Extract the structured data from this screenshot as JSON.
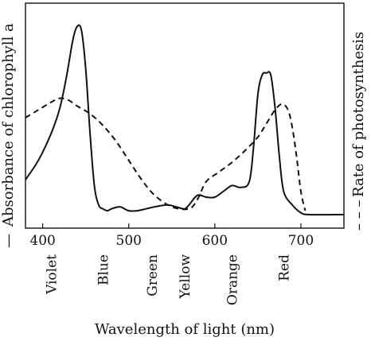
{
  "chart_data": {
    "type": "line",
    "xlabel": "Wavelength of light (nm)",
    "ylabel_left": "Absorbance of chlorophyll a",
    "ylabel_right": "Rate of photosynthesis",
    "left_marker": "—",
    "right_marker": "– – –",
    "xlim": [
      380,
      750
    ],
    "ylim": [
      0,
      1
    ],
    "xticks": [
      {
        "value": 400,
        "label": "400"
      },
      {
        "value": 500,
        "label": "500"
      },
      {
        "value": 600,
        "label": "600"
      },
      {
        "value": 700,
        "label": "700"
      }
    ],
    "color_labels": [
      {
        "text": "Violet",
        "x": 410
      },
      {
        "text": "Blue",
        "x": 470
      },
      {
        "text": "Green",
        "x": 527
      },
      {
        "text": "Yellow",
        "x": 565
      },
      {
        "text": "Orange",
        "x": 620
      },
      {
        "text": "Red",
        "x": 680
      }
    ],
    "series": [
      {
        "name": "Absorbance of chlorophyll a",
        "style": "solid",
        "x": [
          380,
          395,
          410,
          420,
          428,
          435,
          440,
          445,
          450,
          455,
          460,
          465,
          470,
          475,
          480,
          490,
          500,
          510,
          520,
          530,
          545,
          555,
          565,
          570,
          580,
          590,
          600,
          610,
          620,
          630,
          640,
          645,
          650,
          655,
          660,
          665,
          670,
          675,
          680,
          690,
          700,
          710,
          750
        ],
        "y": [
          0.18,
          0.28,
          0.42,
          0.55,
          0.72,
          0.9,
          0.97,
          0.95,
          0.75,
          0.42,
          0.15,
          0.05,
          0.03,
          0.02,
          0.03,
          0.04,
          0.02,
          0.02,
          0.03,
          0.04,
          0.05,
          0.04,
          0.03,
          0.05,
          0.1,
          0.09,
          0.09,
          0.12,
          0.15,
          0.14,
          0.17,
          0.35,
          0.62,
          0.72,
          0.73,
          0.72,
          0.55,
          0.3,
          0.12,
          0.05,
          0.01,
          0.0,
          0.0
        ]
      },
      {
        "name": "Rate of photosynthesis",
        "style": "dashed",
        "x": [
          380,
          395,
          410,
          420,
          430,
          440,
          455,
          470,
          485,
          500,
          515,
          530,
          550,
          570,
          580,
          590,
          605,
          620,
          635,
          650,
          660,
          670,
          678,
          685,
          690,
          695,
          700,
          705
        ],
        "y": [
          0.5,
          0.54,
          0.58,
          0.6,
          0.59,
          0.56,
          0.52,
          0.46,
          0.38,
          0.28,
          0.18,
          0.1,
          0.04,
          0.03,
          0.08,
          0.17,
          0.22,
          0.27,
          0.33,
          0.4,
          0.47,
          0.54,
          0.57,
          0.54,
          0.45,
          0.3,
          0.12,
          0.02
        ]
      }
    ]
  }
}
